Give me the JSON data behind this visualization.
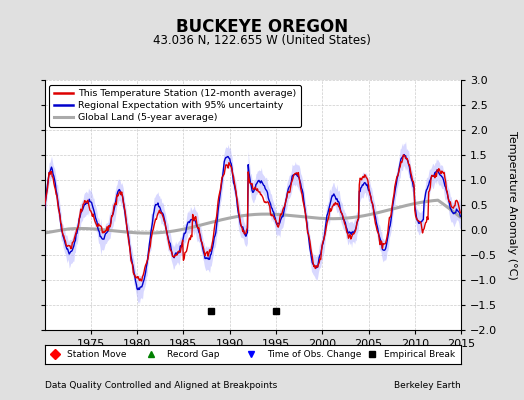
{
  "title": "BUCKEYE OREGON",
  "subtitle": "43.036 N, 122.655 W (United States)",
  "ylabel": "Temperature Anomaly (°C)",
  "footer_left": "Data Quality Controlled and Aligned at Breakpoints",
  "footer_right": "Berkeley Earth",
  "xlim": [
    1970,
    2015
  ],
  "ylim": [
    -2,
    3
  ],
  "yticks": [
    -2,
    -1.5,
    -1,
    -0.5,
    0,
    0.5,
    1,
    1.5,
    2,
    2.5,
    3
  ],
  "xticks": [
    1975,
    1980,
    1985,
    1990,
    1995,
    2000,
    2005,
    2010,
    2015
  ],
  "bg_color": "#e0e0e0",
  "plot_bg_color": "#ffffff",
  "station_color": "#dd0000",
  "regional_color": "#0000cc",
  "regional_fill_color": "#b8b8ff",
  "global_color": "#aaaaaa",
  "empirical_break_years": [
    1988,
    1995
  ],
  "seed": 17
}
